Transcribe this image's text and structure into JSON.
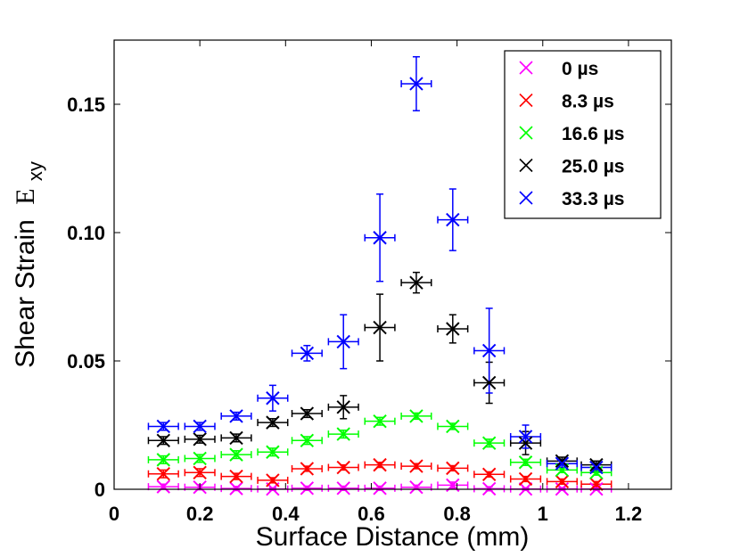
{
  "chart_data": {
    "type": "scatter",
    "xlabel": "Surface Distance (mm)",
    "ylabel": "Shear Strain",
    "ylabel_symbol": "E",
    "ylabel_subscript": "xy",
    "xlim": [
      0,
      1.3
    ],
    "ylim": [
      0,
      0.175
    ],
    "xticks": [
      0,
      0.2,
      0.4,
      0.6,
      0.8,
      1.0,
      1.2
    ],
    "xtick_labels": [
      "0",
      "0.2",
      "0.4",
      "0.6",
      "0.8",
      "1",
      "1.2"
    ],
    "yticks": [
      0,
      0.05,
      0.1,
      0.15
    ],
    "ytick_labels": [
      "0",
      "0.05",
      "0.10",
      "0.15"
    ],
    "grid": false,
    "legend_position": "top-right",
    "x_error": 0.035,
    "series": [
      {
        "name": "0 µs",
        "color": "#ff00ff",
        "x": [
          0.115,
          0.2,
          0.285,
          0.37,
          0.45,
          0.535,
          0.62,
          0.705,
          0.79,
          0.875,
          0.96,
          1.045,
          1.125
        ],
        "y": [
          0.001,
          0.0008,
          0.0003,
          0.0001,
          0.0004,
          0.0004,
          0.0004,
          0.0008,
          0.0016,
          0.0002,
          0.0001,
          0.0001,
          0.0001
        ],
        "err": [
          0.001,
          0.001,
          0.0008,
          0.0005,
          0.0008,
          0.0008,
          0.0008,
          0.0008,
          0.0012,
          0.0008,
          0.0005,
          0.0005,
          0.0005
        ]
      },
      {
        "name": "8.3 µs",
        "color": "#ff0000",
        "x": [
          0.115,
          0.2,
          0.285,
          0.37,
          0.45,
          0.535,
          0.62,
          0.705,
          0.79,
          0.875,
          0.96,
          1.045,
          1.125
        ],
        "y": [
          0.006,
          0.0065,
          0.005,
          0.0035,
          0.008,
          0.0085,
          0.0095,
          0.009,
          0.0082,
          0.0058,
          0.004,
          0.003,
          0.002
        ],
        "err": [
          0.0015,
          0.0015,
          0.0012,
          0.001,
          0.001,
          0.001,
          0.001,
          0.001,
          0.001,
          0.001,
          0.001,
          0.001,
          0.001
        ]
      },
      {
        "name": "16.6 µs",
        "color": "#00ff00",
        "x": [
          0.115,
          0.2,
          0.285,
          0.37,
          0.45,
          0.535,
          0.62,
          0.705,
          0.79,
          0.875,
          0.96,
          1.045,
          1.125
        ],
        "y": [
          0.0115,
          0.012,
          0.0135,
          0.0145,
          0.019,
          0.0215,
          0.0265,
          0.0285,
          0.0245,
          0.018,
          0.0105,
          0.0075,
          0.0065
        ],
        "err": [
          0.0015,
          0.0015,
          0.0015,
          0.0015,
          0.0015,
          0.0015,
          0.0015,
          0.0012,
          0.0012,
          0.0015,
          0.0012,
          0.001,
          0.001
        ]
      },
      {
        "name": "25.0 µs",
        "color": "#000000",
        "x": [
          0.115,
          0.2,
          0.285,
          0.37,
          0.45,
          0.535,
          0.62,
          0.705,
          0.79,
          0.875,
          0.96,
          1.045,
          1.125
        ],
        "y": [
          0.019,
          0.0195,
          0.02,
          0.026,
          0.0295,
          0.032,
          0.063,
          0.0805,
          0.0625,
          0.0415,
          0.018,
          0.011,
          0.0095
        ],
        "err": [
          0.0015,
          0.0015,
          0.0015,
          0.0015,
          0.0015,
          0.0045,
          0.013,
          0.004,
          0.0055,
          0.008,
          0.0045,
          0.0015,
          0.0015
        ]
      },
      {
        "name": "33.3 µs",
        "color": "#0000ff",
        "x": [
          0.115,
          0.2,
          0.285,
          0.37,
          0.45,
          0.535,
          0.62,
          0.705,
          0.79,
          0.875,
          0.96,
          1.045,
          1.125
        ],
        "y": [
          0.0245,
          0.0245,
          0.0285,
          0.0355,
          0.053,
          0.0575,
          0.098,
          0.158,
          0.105,
          0.054,
          0.0205,
          0.01,
          0.0085
        ],
        "err": [
          0.0015,
          0.0015,
          0.0015,
          0.005,
          0.003,
          0.0105,
          0.017,
          0.0105,
          0.012,
          0.0165,
          0.0045,
          0.0015,
          0.0015
        ]
      }
    ]
  }
}
